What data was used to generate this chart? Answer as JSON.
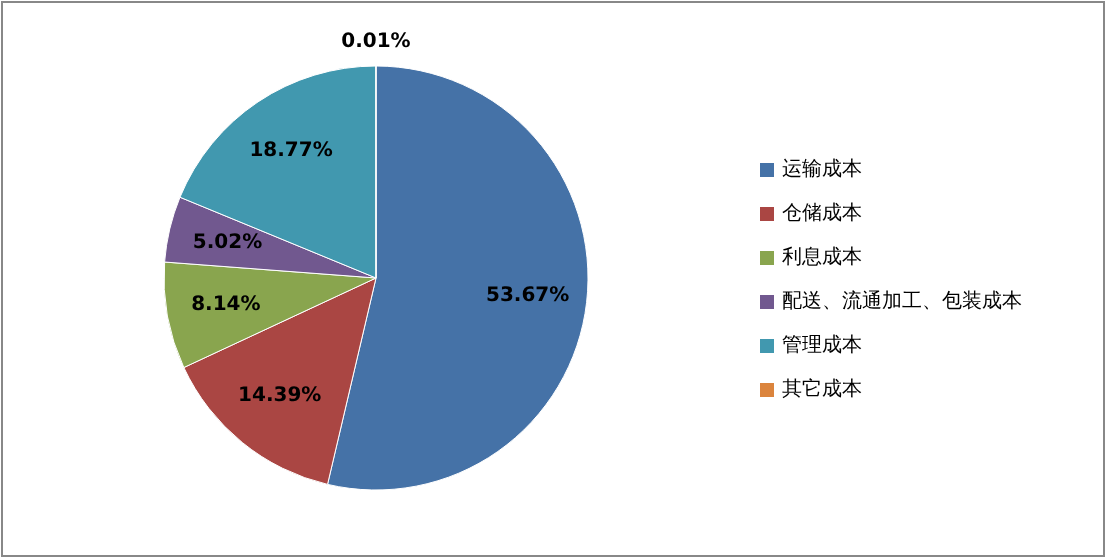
{
  "chart_data": {
    "type": "pie",
    "categories": [
      "运输成本",
      "仓储成本",
      "利息成本",
      "配送、流通加工、包装成本",
      "管理成本",
      "其它成本"
    ],
    "values": [
      53.67,
      14.39,
      8.14,
      5.02,
      18.77,
      0.01
    ],
    "colors": [
      "#4572a7",
      "#aa4643",
      "#89a54e",
      "#71588f",
      "#4198af",
      "#db843d"
    ],
    "value_labels": [
      "53.67%",
      "14.39%",
      "8.14%",
      "5.02%",
      "18.77%",
      "0.01%"
    ],
    "legend": "right"
  }
}
